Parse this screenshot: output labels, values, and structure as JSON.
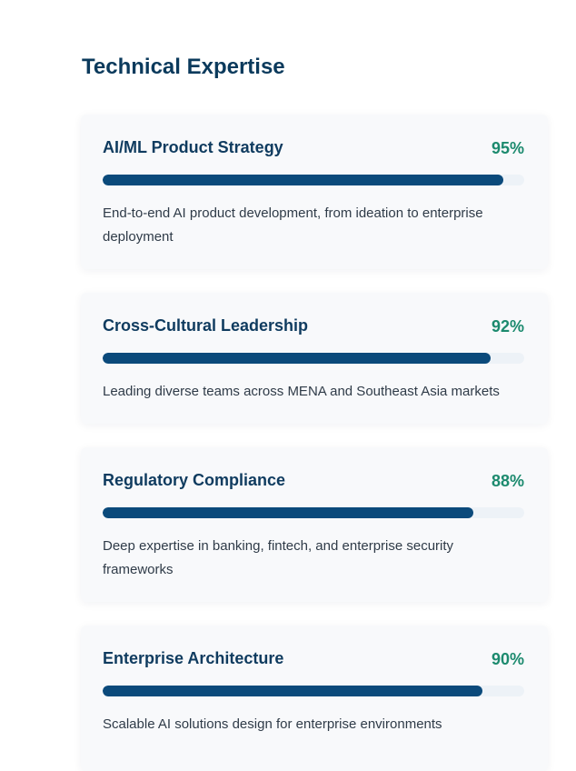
{
  "section": {
    "title": "Technical Expertise"
  },
  "colors": {
    "title": "#0b3a5c",
    "percent": "#1c8a6e",
    "bar_fill": "#0b4a7b",
    "bar_track": "#edf2f7",
    "card_bg": "#f8f9fb"
  },
  "skills": [
    {
      "name": "AI/ML Product Strategy",
      "percent_label": "95%",
      "level": 95,
      "description": "End-to-end AI product development, from ideation to enterprise deployment"
    },
    {
      "name": "Cross-Cultural Leadership",
      "percent_label": "92%",
      "level": 92,
      "description": "Leading diverse teams across MENA and Southeast Asia markets"
    },
    {
      "name": "Regulatory Compliance",
      "percent_label": "88%",
      "level": 88,
      "description": "Deep expertise in banking, fintech, and enterprise security frameworks"
    },
    {
      "name": "Enterprise Architecture",
      "percent_label": "90%",
      "level": 90,
      "description": "Scalable AI solutions design for enterprise environments"
    }
  ]
}
